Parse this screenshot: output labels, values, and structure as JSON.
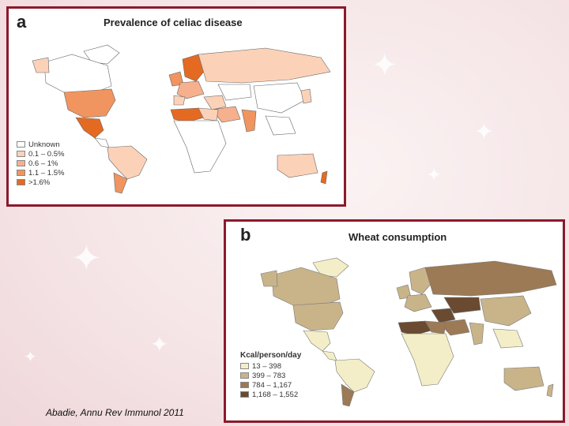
{
  "panel_a": {
    "letter": "a",
    "title": "Prevalence of celiac disease",
    "legend": [
      {
        "label": "Unknown",
        "color": "#ffffff"
      },
      {
        "label": "0.1 – 0.5%",
        "color": "#fbd2b8"
      },
      {
        "label": "0.6 – 1%",
        "color": "#f6b08e"
      },
      {
        "label": "1.1 – 1.5%",
        "color": "#f0955f"
      },
      {
        "label": ">1.6%",
        "color": "#e46a22"
      }
    ]
  },
  "panel_b": {
    "letter": "b",
    "title": "Wheat consumption",
    "legend_title": "Kcal/person/day",
    "legend": [
      {
        "label": "13 – 398",
        "color": "#f3eec7"
      },
      {
        "label": "399 – 783",
        "color": "#c9b48a"
      },
      {
        "label": "784 – 1,167",
        "color": "#9c7a55"
      },
      {
        "label": "1,168 – 1,552",
        "color": "#6a4a30"
      }
    ]
  },
  "citation": "Abadie, Annu Rev Immunol 2011"
}
